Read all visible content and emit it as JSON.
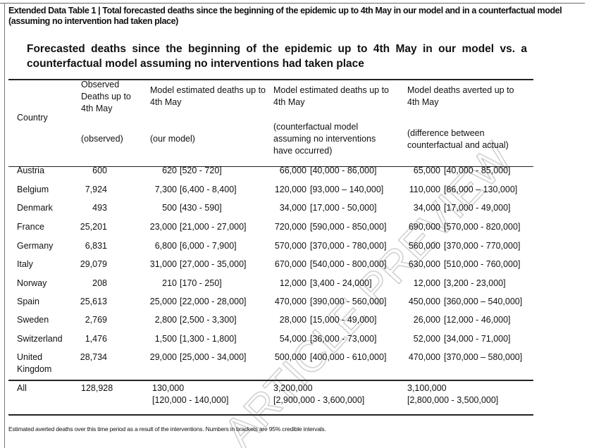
{
  "title": "Extended Data Table 1 | Total forecasted deaths since the beginning of the epidemic up to 4th May in our model and in a counterfactual model (assuming no intervention had taken place)",
  "subtitle": "Forecasted deaths since the beginning of the epidemic up to 4th May in our model vs. a counterfactual model assuming no interventions had taken place",
  "headers": {
    "country": "Country",
    "observed": "Observed Deaths up to 4th May",
    "observed_sub": "(observed)",
    "model": "Model estimated deaths up to 4th May",
    "model_sub": "(our model)",
    "counterfactual": "Model estimated deaths up to 4th May",
    "counterfactual_sub": "(counterfactual model assuming no interventions have occurred)",
    "averted": "Model deaths averted up to 4th May",
    "averted_sub": "(difference between counterfactual and actual)"
  },
  "rows": [
    {
      "country": "Austria",
      "observed": "600",
      "model": "620",
      "model_ci": "[520 - 720]",
      "cf": "66,000",
      "cf_ci": "[40,000 - 86,000]",
      "av": "65,000",
      "av_ci": "[40,000 - 85,000]"
    },
    {
      "country": "Belgium",
      "observed": "7,924",
      "model": "7,300",
      "model_ci": "[6,400 - 8,400]",
      "cf": "120,000",
      "cf_ci": "[93,000 – 140,000]",
      "av": "110,000",
      "av_ci": "[86,000 – 130,000]"
    },
    {
      "country": "Denmark",
      "observed": "493",
      "model": "500",
      "model_ci": "[430 - 590]",
      "cf": "34,000",
      "cf_ci": "[17,000 - 50,000]",
      "av": "34,000",
      "av_ci": "[17,000 - 49,000]"
    },
    {
      "country": "France",
      "observed": "25,201",
      "model": "23,000",
      "model_ci": "[21,000 - 27,000]",
      "cf": "720,000",
      "cf_ci": "[590,000 - 850,000]",
      "av": "690,000",
      "av_ci": "[570,000 - 820,000]"
    },
    {
      "country": "Germany",
      "observed": "6,831",
      "model": "6,800",
      "model_ci": "[6,000 - 7,900]",
      "cf": "570,000",
      "cf_ci": "[370,000 - 780,000]",
      "av": "560,000",
      "av_ci": "[370,000 - 770,000]"
    },
    {
      "country": "Italy",
      "observed": "29,079",
      "model": "31,000",
      "model_ci": "[27,000 - 35,000]",
      "cf": "670,000",
      "cf_ci": "[540,000 - 800,000]",
      "av": "630,000",
      "av_ci": "[510,000 - 760,000]"
    },
    {
      "country": "Norway",
      "observed": "208",
      "model": "210",
      "model_ci": "[170 - 250]",
      "cf": "12,000",
      "cf_ci": "[3,400 - 24,000]",
      "av": "12,000",
      "av_ci": "[3,200 - 23,000]"
    },
    {
      "country": "Spain",
      "observed": "25,613",
      "model": "25,000",
      "model_ci": "[22,000 - 28,000]",
      "cf": "470,000",
      "cf_ci": "[390,000 - 560,000]",
      "av": "450,000",
      "av_ci": "[360,000 – 540,000]"
    },
    {
      "country": "Sweden",
      "observed": "2,769",
      "model": "2,800",
      "model_ci": "[2,500 - 3,300]",
      "cf": "28,000",
      "cf_ci": "[15,000 - 49,000]",
      "av": "26,000",
      "av_ci": "[12,000 - 46,000]"
    },
    {
      "country": "Switzerland",
      "observed": "1,476",
      "model": "1,500",
      "model_ci": "[1,300 - 1,800]",
      "cf": "54,000",
      "cf_ci": "[36,000 - 73,000]",
      "av": "52,000",
      "av_ci": "[34,000 - 71,000]"
    },
    {
      "country": "United Kingdom",
      "observed": "28,734",
      "model": "29,000",
      "model_ci": "[25,000 - 34,000]",
      "cf": "500,000",
      "cf_ci": "[400,000 - 610,000]",
      "av": "470,000",
      "av_ci": "[370,000 – 580,000]"
    }
  ],
  "total": {
    "country": "All",
    "observed": "128,928",
    "model": "130,000",
    "model_ci": "[120,000 - 140,000]",
    "cf": "3,200,000",
    "cf_ci": "[2,900,000 - 3,600,000]",
    "av": "3,100,000",
    "av_ci": "[2,800,000 - 3,500,000]"
  },
  "footnote": "Estimated averted deaths over this time period as a result of the interventions. Numbers in brackets are 95% credible intervals.",
  "watermark": "ARTICLE PREVIEW",
  "colors": {
    "watermark": "#d8d8d8",
    "text": "#111111"
  }
}
